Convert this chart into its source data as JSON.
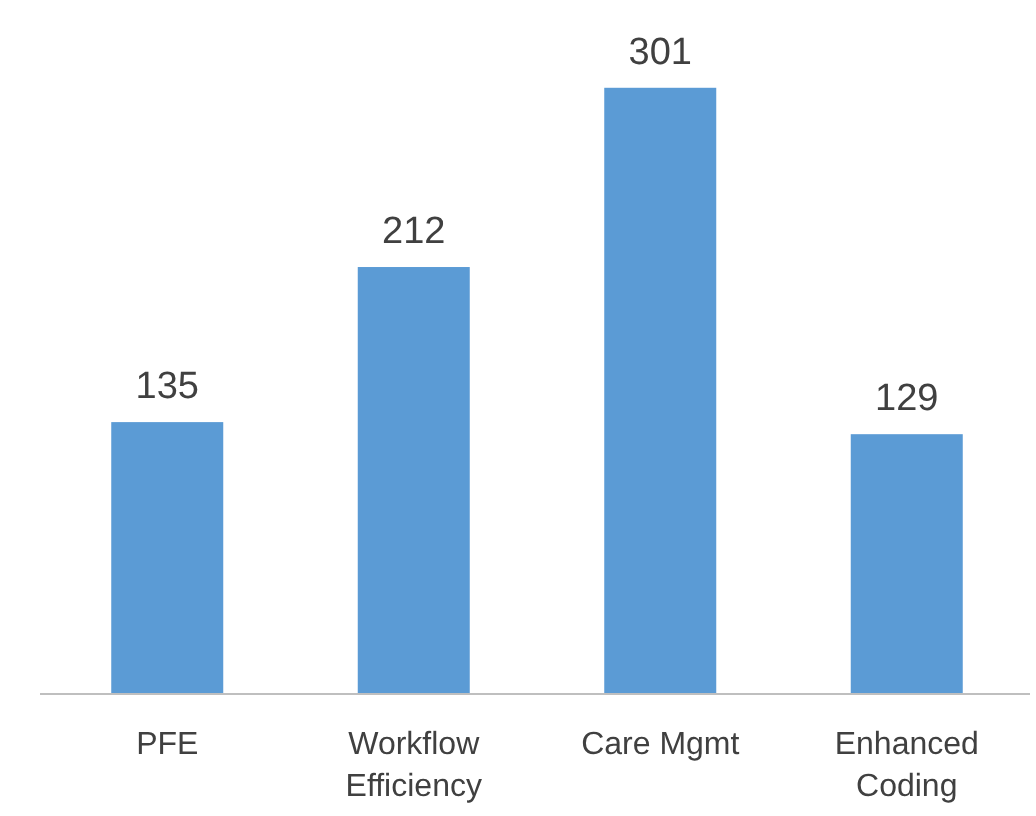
{
  "chart_data": {
    "type": "bar",
    "categories": [
      "PFE",
      "Workflow Efficiency",
      "Care Mgmt",
      "Enhanced Coding"
    ],
    "values": [
      135,
      212,
      301,
      129
    ],
    "color": "#5b9bd5",
    "data_labels": true
  }
}
